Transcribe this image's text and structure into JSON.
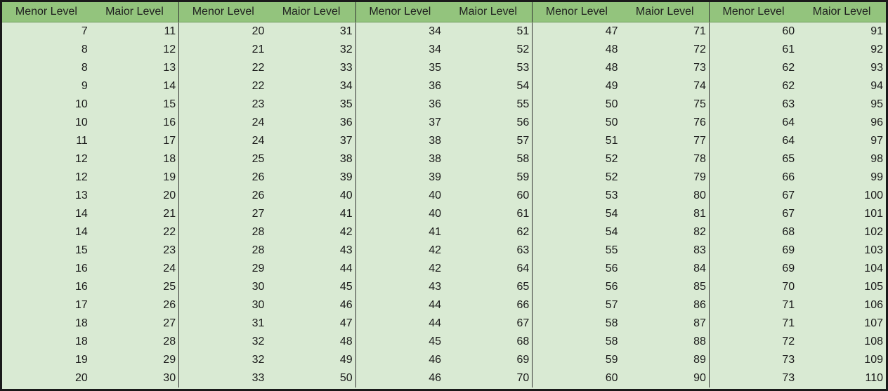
{
  "table": {
    "groups": [
      {
        "headers": [
          "Menor Level",
          "Maior Level"
        ],
        "rows": [
          [
            7,
            11
          ],
          [
            8,
            12
          ],
          [
            8,
            13
          ],
          [
            9,
            14
          ],
          [
            10,
            15
          ],
          [
            10,
            16
          ],
          [
            11,
            17
          ],
          [
            12,
            18
          ],
          [
            12,
            19
          ],
          [
            13,
            20
          ],
          [
            14,
            21
          ],
          [
            14,
            22
          ],
          [
            15,
            23
          ],
          [
            16,
            24
          ],
          [
            16,
            25
          ],
          [
            17,
            26
          ],
          [
            18,
            27
          ],
          [
            18,
            28
          ],
          [
            19,
            29
          ],
          [
            20,
            30
          ]
        ]
      },
      {
        "headers": [
          "Menor Level",
          "Maior Level"
        ],
        "rows": [
          [
            20,
            31
          ],
          [
            21,
            32
          ],
          [
            22,
            33
          ],
          [
            22,
            34
          ],
          [
            23,
            35
          ],
          [
            24,
            36
          ],
          [
            24,
            37
          ],
          [
            25,
            38
          ],
          [
            26,
            39
          ],
          [
            26,
            40
          ],
          [
            27,
            41
          ],
          [
            28,
            42
          ],
          [
            28,
            43
          ],
          [
            29,
            44
          ],
          [
            30,
            45
          ],
          [
            30,
            46
          ],
          [
            31,
            47
          ],
          [
            32,
            48
          ],
          [
            32,
            49
          ],
          [
            33,
            50
          ]
        ]
      },
      {
        "headers": [
          "Menor Level",
          "Maior Level"
        ],
        "rows": [
          [
            34,
            51
          ],
          [
            34,
            52
          ],
          [
            35,
            53
          ],
          [
            36,
            54
          ],
          [
            36,
            55
          ],
          [
            37,
            56
          ],
          [
            38,
            57
          ],
          [
            38,
            58
          ],
          [
            39,
            59
          ],
          [
            40,
            60
          ],
          [
            40,
            61
          ],
          [
            41,
            62
          ],
          [
            42,
            63
          ],
          [
            42,
            64
          ],
          [
            43,
            65
          ],
          [
            44,
            66
          ],
          [
            44,
            67
          ],
          [
            45,
            68
          ],
          [
            46,
            69
          ],
          [
            46,
            70
          ]
        ]
      },
      {
        "headers": [
          "Menor Level",
          "Maior Level"
        ],
        "rows": [
          [
            47,
            71
          ],
          [
            48,
            72
          ],
          [
            48,
            73
          ],
          [
            49,
            74
          ],
          [
            50,
            75
          ],
          [
            50,
            76
          ],
          [
            51,
            77
          ],
          [
            52,
            78
          ],
          [
            52,
            79
          ],
          [
            53,
            80
          ],
          [
            54,
            81
          ],
          [
            54,
            82
          ],
          [
            55,
            83
          ],
          [
            56,
            84
          ],
          [
            56,
            85
          ],
          [
            57,
            86
          ],
          [
            58,
            87
          ],
          [
            58,
            88
          ],
          [
            59,
            89
          ],
          [
            60,
            90
          ]
        ]
      },
      {
        "headers": [
          "Menor Level",
          "Maior Level"
        ],
        "rows": [
          [
            60,
            91
          ],
          [
            61,
            92
          ],
          [
            62,
            93
          ],
          [
            62,
            94
          ],
          [
            63,
            95
          ],
          [
            64,
            96
          ],
          [
            64,
            97
          ],
          [
            65,
            98
          ],
          [
            66,
            99
          ],
          [
            67,
            100
          ],
          [
            67,
            101
          ],
          [
            68,
            102
          ],
          [
            69,
            103
          ],
          [
            69,
            104
          ],
          [
            70,
            105
          ],
          [
            71,
            106
          ],
          [
            71,
            107
          ],
          [
            72,
            108
          ],
          [
            73,
            109
          ],
          [
            73,
            110
          ]
        ]
      }
    ]
  }
}
